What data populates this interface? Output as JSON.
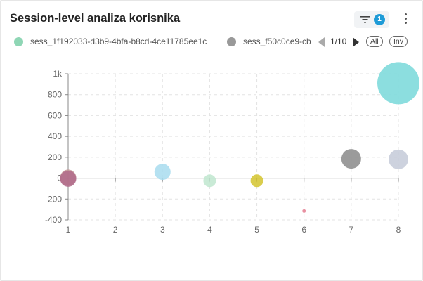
{
  "header": {
    "title": "Session-level analiza korisnika",
    "filter_count": "1"
  },
  "legend": {
    "items": [
      {
        "label": "sess_1f192033-d3b9-4bfa-b8cd-4ce11785ee1c",
        "color": "#8fd6b5"
      },
      {
        "label": "sess_f50c0ce9-cb",
        "color": "#999999"
      }
    ],
    "page": "1/10",
    "all_label": "All",
    "inv_label": "Inv"
  },
  "chart_data": {
    "type": "scatter",
    "title": "",
    "xlabel": "",
    "ylabel": "",
    "xlim": [
      1,
      8
    ],
    "ylim": [
      -400,
      1000
    ],
    "x_ticks": [
      "1",
      "2",
      "3",
      "4",
      "5",
      "6",
      "7",
      "8"
    ],
    "y_ticks": [
      "-400",
      "-200",
      "0",
      "200",
      "400",
      "600",
      "800",
      "1k"
    ],
    "grid": true,
    "points": [
      {
        "x": 1,
        "y": 5,
        "size": "medium",
        "color": "#c49595"
      },
      {
        "x": 1,
        "y": -5,
        "size": "medium",
        "color": "#b06a8a"
      },
      {
        "x": 3,
        "y": 60,
        "size": "medium",
        "color": "#a8dcee"
      },
      {
        "x": 4,
        "y": -25,
        "size": "small",
        "color": "#bfe6cf"
      },
      {
        "x": 5,
        "y": -25,
        "size": "small",
        "color": "#d4c42e"
      },
      {
        "x": 6,
        "y": -315,
        "size": "tiny",
        "color": "#e47d90"
      },
      {
        "x": 7,
        "y": 185,
        "size": "large",
        "color": "#8a8a8a"
      },
      {
        "x": 8,
        "y": 180,
        "size": "large",
        "color": "#c4cad8"
      },
      {
        "x": 8,
        "y": 910,
        "size": "huge",
        "color": "#7fdadc"
      }
    ]
  }
}
